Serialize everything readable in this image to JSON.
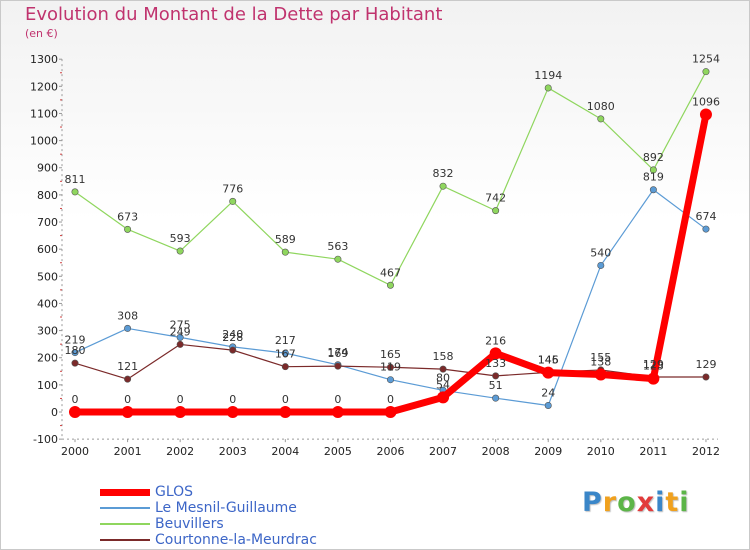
{
  "title": "Evolution du Montant de la Dette par Habitant",
  "subtitle": "(en €)",
  "logo": {
    "text": "Proxiti",
    "colors": [
      "#3a86c8",
      "#f0a11e",
      "#5cb548",
      "#e23b3b",
      "#3a86c8",
      "#f0a11e",
      "#5cb548"
    ]
  },
  "chart_data": {
    "type": "line",
    "title": "Evolution du Montant de la Dette par Habitant",
    "ylabel": "(en €)",
    "x": [
      "2000",
      "2001",
      "2002",
      "2003",
      "2004",
      "2005",
      "2006",
      "2007",
      "2008",
      "2009",
      "2010",
      "2011",
      "2012"
    ],
    "ylim": [
      -100,
      1300
    ],
    "yticks": [
      "-100",
      "0",
      "100",
      "200",
      "300",
      "400",
      "500",
      "600",
      "700",
      "800",
      "900",
      "1000",
      "1100",
      "1200",
      "1300"
    ],
    "grid": false,
    "legend_position": "bottom-left",
    "series": [
      {
        "name": "GLOS",
        "color": "#ff0000",
        "values": [
          0,
          0,
          0,
          0,
          0,
          0,
          0,
          54,
          216,
          145,
          138,
          123,
          1096
        ],
        "labels": [
          "0",
          "0",
          "0",
          "0",
          "0",
          "0",
          "0",
          "54",
          "216",
          "145",
          "138",
          "123",
          "1096"
        ]
      },
      {
        "name": "Le Mesnil-Guillaume",
        "color": "#5b9bd5",
        "values": [
          219,
          308,
          275,
          240,
          217,
          174,
          119,
          80,
          51,
          24,
          540,
          819,
          674
        ],
        "labels": [
          "219",
          "308",
          "275",
          "240",
          "217",
          "174",
          "119",
          "80",
          "51",
          "24",
          "540",
          "819",
          "674"
        ]
      },
      {
        "name": "Beuvillers",
        "color": "#8fd65e",
        "values": [
          811,
          673,
          593,
          776,
          589,
          563,
          467,
          832,
          742,
          1194,
          1080,
          892,
          1254
        ],
        "labels": [
          "811",
          "673",
          "593",
          "776",
          "589",
          "563",
          "467",
          "832",
          "742",
          "1194",
          "1080",
          "892",
          "1254"
        ]
      },
      {
        "name": "Courtonne-la-Meurdrac",
        "color": "#7b2a2a",
        "values": [
          180,
          121,
          249,
          228,
          167,
          169,
          165,
          158,
          133,
          146,
          155,
          129,
          129
        ],
        "labels": [
          "180",
          "121",
          "249",
          "228",
          "167",
          "169",
          "165",
          "158",
          "133",
          "146",
          "155",
          "129",
          "129"
        ]
      }
    ]
  }
}
